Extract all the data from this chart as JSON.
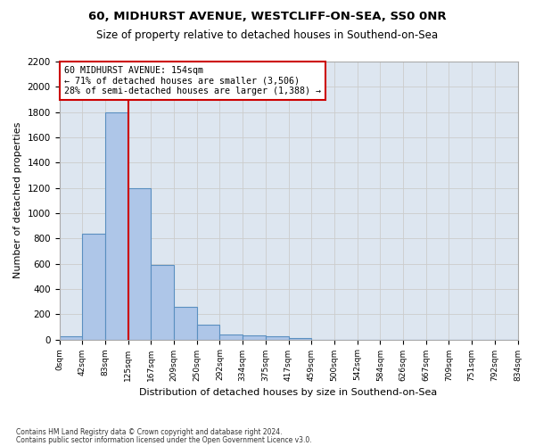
{
  "title1": "60, MIDHURST AVENUE, WESTCLIFF-ON-SEA, SS0 0NR",
  "title2": "Size of property relative to detached houses in Southend-on-Sea",
  "xlabel": "Distribution of detached houses by size in Southend-on-Sea",
  "ylabel": "Number of detached properties",
  "footnote1": "Contains HM Land Registry data © Crown copyright and database right 2024.",
  "footnote2": "Contains public sector information licensed under the Open Government Licence v3.0.",
  "annotation_title": "60 MIDHURST AVENUE: 154sqm",
  "annotation_line1": "← 71% of detached houses are smaller (3,506)",
  "annotation_line2": "28% of semi-detached houses are larger (1,388) →",
  "bar_values": [
    25,
    840,
    1800,
    1200,
    590,
    255,
    120,
    40,
    35,
    25,
    10,
    0,
    0,
    0,
    0,
    0,
    0,
    0,
    0,
    0
  ],
  "bin_labels": [
    "0sqm",
    "42sqm",
    "83sqm",
    "125sqm",
    "167sqm",
    "209sqm",
    "250sqm",
    "292sqm",
    "334sqm",
    "375sqm",
    "417sqm",
    "459sqm",
    "500sqm",
    "542sqm",
    "584sqm",
    "626sqm",
    "667sqm",
    "709sqm",
    "751sqm",
    "792sqm",
    "834sqm"
  ],
  "bar_color": "#aec6e8",
  "bar_edge_color": "#5a8fc0",
  "vline_x": 3.0,
  "vline_color": "#cc0000",
  "annotation_box_color": "#ffffff",
  "annotation_box_edge": "#cc0000",
  "ylim": [
    0,
    2200
  ],
  "yticks": [
    0,
    200,
    400,
    600,
    800,
    1000,
    1200,
    1400,
    1600,
    1800,
    2000,
    2200
  ],
  "grid_color": "#cccccc",
  "background_color": "#dde6f0"
}
